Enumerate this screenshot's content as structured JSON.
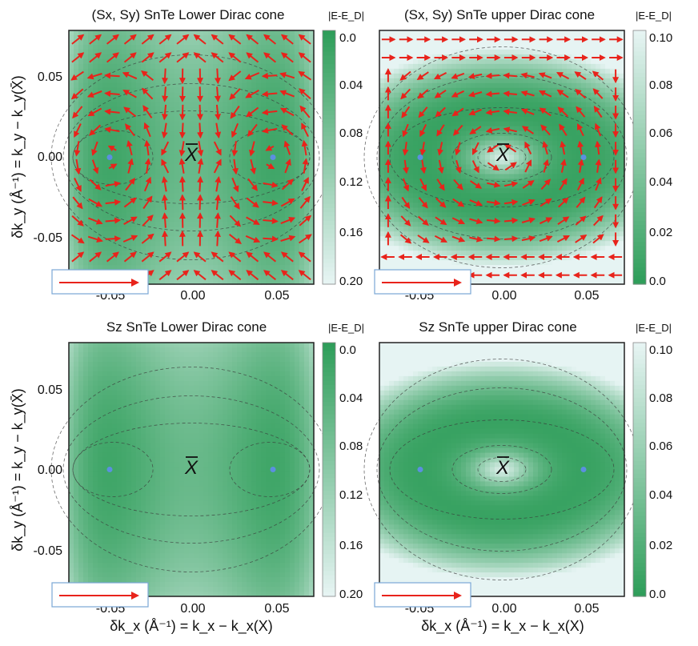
{
  "chart_data": [
    {
      "type": "heatmap",
      "title": "(Sx, Sy) SnTe Lower Dirac cone",
      "colorbar_label": "|E-E_D|",
      "colorbar_ticks": [
        "0.0",
        "0.04",
        "0.08",
        "0.12",
        "0.16",
        "0.20"
      ],
      "colorbar_range": [
        0.0,
        0.2
      ],
      "colorbar_reversed": true,
      "xlim": [
        -0.075,
        0.075
      ],
      "ylim": [
        -0.075,
        0.075
      ],
      "xticks": [
        "-0.05",
        "0.00",
        "0.05"
      ],
      "yticks": [
        "0.05",
        "0.00",
        "-0.05"
      ],
      "ylabel": "δk_y (Å⁻¹) = k_y − k_y(X̄)",
      "xlabel": "",
      "dirac_points": [
        [
          -0.05,
          0.0
        ],
        [
          0.05,
          0.0
        ]
      ],
      "center_label": "X",
      "overlay": "in-plane spin arrows (red)",
      "cone": "lower"
    },
    {
      "type": "heatmap",
      "title": "(Sx, Sy) SnTe upper Dirac cone",
      "colorbar_label": "|E-E_D|",
      "colorbar_ticks": [
        "0.10",
        "0.08",
        "0.06",
        "0.04",
        "0.02",
        "0.0"
      ],
      "colorbar_range": [
        0.0,
        0.1
      ],
      "colorbar_reversed": false,
      "xlim": [
        -0.075,
        0.075
      ],
      "ylim": [
        -0.075,
        0.075
      ],
      "xticks": [
        "-0.05",
        "0.00",
        "0.05"
      ],
      "yticks": [],
      "ylabel": "",
      "xlabel": "",
      "dirac_points": [
        [
          -0.05,
          0.0
        ],
        [
          0.05,
          0.0
        ]
      ],
      "center_label": "X",
      "overlay": "in-plane spin arrows (red)",
      "cone": "upper"
    },
    {
      "type": "heatmap",
      "title": "Sz SnTe Lower Dirac cone",
      "colorbar_label": "|E-E_D|",
      "colorbar_ticks": [
        "0.0",
        "0.04",
        "0.08",
        "0.12",
        "0.16",
        "0.20"
      ],
      "colorbar_range": [
        0.0,
        0.2
      ],
      "colorbar_reversed": true,
      "xlim": [
        -0.075,
        0.075
      ],
      "ylim": [
        -0.075,
        0.075
      ],
      "xticks": [
        "-0.05",
        "0.00",
        "0.05"
      ],
      "yticks": [
        "0.05",
        "0.00",
        "-0.05"
      ],
      "ylabel": "δk_y (Å⁻¹) = k_y − k_y(X̄)",
      "xlabel": "δk_x (Å⁻¹) = k_x − k_x(X)",
      "dirac_points": [
        [
          -0.05,
          0.0
        ],
        [
          0.05,
          0.0
        ]
      ],
      "center_label": "X",
      "overlay": "none",
      "cone": "lower"
    },
    {
      "type": "heatmap",
      "title": "Sz SnTe upper Dirac cone",
      "colorbar_label": "|E-E_D|",
      "colorbar_ticks": [
        "0.10",
        "0.08",
        "0.06",
        "0.04",
        "0.02",
        "0.0"
      ],
      "colorbar_range": [
        0.0,
        0.1
      ],
      "colorbar_reversed": false,
      "xlim": [
        -0.075,
        0.075
      ],
      "ylim": [
        -0.075,
        0.075
      ],
      "xticks": [
        "-0.05",
        "0.00",
        "0.05"
      ],
      "yticks": [],
      "ylabel": "",
      "xlabel": "δk_x (Å⁻¹) = k_x − k_x(X)",
      "dirac_points": [
        [
          -0.05,
          0.0
        ],
        [
          0.05,
          0.0
        ]
      ],
      "center_label": "X",
      "overlay": "none",
      "cone": "upper"
    }
  ],
  "colors": {
    "green_dark": "#2f9e5a",
    "light": "#e6f4f3",
    "arrow": "#e8231b",
    "dirac_point": "#5b8fe0",
    "legend_border": "#7aa7d6"
  }
}
